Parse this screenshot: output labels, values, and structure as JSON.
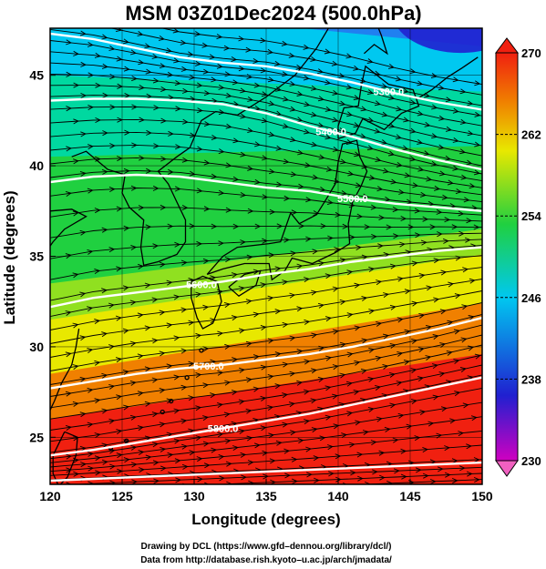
{
  "title": "MSM 03Z01Dec2024 (500.0hPa)",
  "xlabel": "Longitude (degrees)",
  "ylabel": "Latitude  (degrees)",
  "map": {
    "lon_range": [
      120,
      150
    ],
    "lat_range": [
      22.4,
      47.6
    ],
    "lon_ticks": [
      "120",
      "125",
      "130",
      "135",
      "140",
      "145",
      "150"
    ],
    "lat_ticks": [
      "25",
      "30",
      "35",
      "40",
      "45"
    ],
    "grid": true
  },
  "colorbar": {
    "min": 230,
    "max": 270,
    "ticks": [
      "230",
      "238",
      "246",
      "254",
      "262",
      "270"
    ],
    "colors": [
      "#d000c0",
      "#2020d0",
      "#00c8f0",
      "#20d040",
      "#e8e800",
      "#f08000",
      "#f02010"
    ]
  },
  "contours": [
    {
      "label": "5300.0",
      "lats": [
        47.3,
        47.0,
        46.5,
        46.0,
        45.7,
        45.5,
        45.1,
        44.6,
        44.0,
        43.5,
        43.1
      ]
    },
    {
      "label": "5400.0",
      "lats": [
        43.6,
        43.7,
        43.7,
        43.6,
        43.4,
        42.9,
        42.2,
        41.6,
        40.9,
        40.3,
        39.8
      ]
    },
    {
      "label": "5500.0",
      "lats": [
        39.1,
        39.4,
        39.5,
        39.4,
        39.1,
        38.8,
        38.6,
        38.2,
        37.9,
        37.7,
        37.5
      ]
    },
    {
      "label": "5600.0",
      "lats": [
        32.2,
        32.7,
        33.0,
        33.3,
        33.6,
        34.0,
        34.3,
        34.7,
        35.0,
        35.3,
        35.5
      ]
    },
    {
      "label": "5700.0",
      "lats": [
        27.7,
        28.1,
        28.5,
        28.8,
        29.0,
        29.3,
        29.6,
        30.0,
        30.5,
        31.0,
        31.6
      ]
    },
    {
      "label": "5800.0",
      "lats": [
        24.0,
        24.3,
        24.7,
        25.1,
        25.5,
        25.9,
        26.3,
        26.8,
        27.3,
        27.8,
        28.3
      ]
    },
    {
      "label": "",
      "lats": [
        22.6,
        22.7,
        22.8,
        22.9,
        23.0,
        23.1,
        23.2,
        23.3,
        23.4,
        23.5,
        23.6
      ]
    }
  ],
  "credits": [
    "Drawing by DCL (https://www.gfd–dennou.org/library/dcl/)",
    "Data from http://database.rish.kyoto–u.ac.jp/arch/jmadata/"
  ]
}
